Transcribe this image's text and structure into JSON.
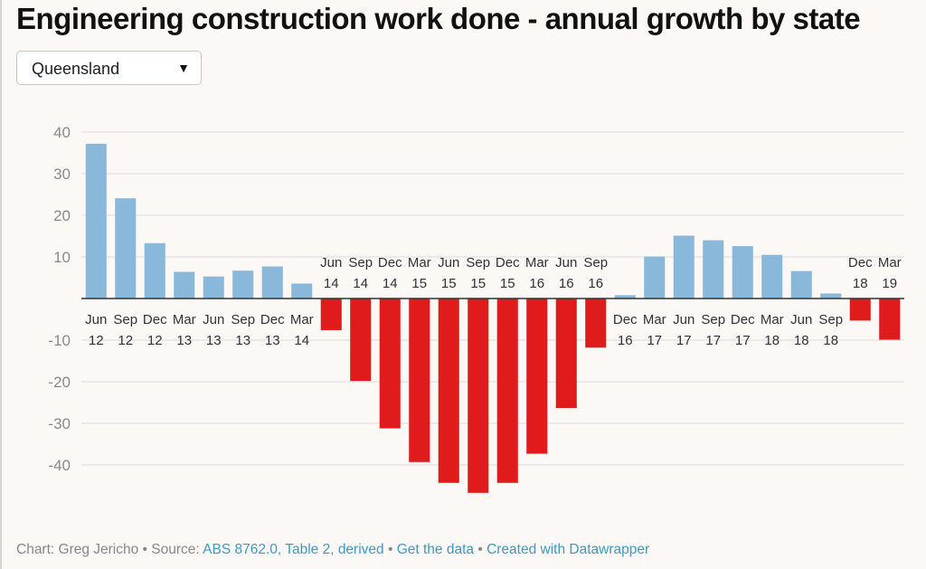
{
  "title": "Engineering construction work done - annual growth by state",
  "dropdown": {
    "selected": "Queensland",
    "arrow_icon": "triangle-down-icon"
  },
  "colors": {
    "positive": "#8ab8da",
    "negative": "#e01b1b",
    "grid": "#dddddd",
    "axis": "#333333"
  },
  "chart_data": {
    "type": "bar",
    "categories": [
      [
        "Jun",
        "12"
      ],
      [
        "Sep",
        "12"
      ],
      [
        "Dec",
        "12"
      ],
      [
        "Mar",
        "13"
      ],
      [
        "Jun",
        "13"
      ],
      [
        "Sep",
        "13"
      ],
      [
        "Dec",
        "13"
      ],
      [
        "Mar",
        "14"
      ],
      [
        "Jun",
        "14"
      ],
      [
        "Sep",
        "14"
      ],
      [
        "Dec",
        "14"
      ],
      [
        "Mar",
        "15"
      ],
      [
        "Jun",
        "15"
      ],
      [
        "Sep",
        "15"
      ],
      [
        "Dec",
        "15"
      ],
      [
        "Mar",
        "16"
      ],
      [
        "Jun",
        "16"
      ],
      [
        "Sep",
        "16"
      ],
      [
        "Dec",
        "16"
      ],
      [
        "Mar",
        "17"
      ],
      [
        "Jun",
        "17"
      ],
      [
        "Sep",
        "17"
      ],
      [
        "Dec",
        "17"
      ],
      [
        "Mar",
        "18"
      ],
      [
        "Jun",
        "18"
      ],
      [
        "Sep",
        "18"
      ],
      [
        "Dec",
        "18"
      ],
      [
        "Mar",
        "19"
      ]
    ],
    "values": [
      37.2,
      24.1,
      13.3,
      6.4,
      5.3,
      6.7,
      7.7,
      3.6,
      -7.6,
      -19.8,
      -31.2,
      -39.3,
      -44.3,
      -46.7,
      -44.3,
      -37.3,
      -26.3,
      -11.8,
      0.8,
      10.1,
      15.1,
      14.0,
      12.6,
      10.5,
      6.6,
      1.2,
      -5.3,
      -9.9
    ],
    "yticks": [
      "40",
      "30",
      "20",
      "10",
      "-10",
      "-20",
      "-30",
      "-40"
    ],
    "ytick_values": [
      40,
      30,
      20,
      10,
      -10,
      -20,
      -30,
      -40
    ],
    "ylim": [
      -48,
      42
    ],
    "grid": true
  },
  "footer": {
    "prefix": "Chart: Greg Jericho • Source: ",
    "source_link": "ABS 8762.0, Table 2, derived",
    "sep1": " • ",
    "get_data": "Get the data",
    "sep2": " • ",
    "created_with": "Created with Datawrapper"
  }
}
